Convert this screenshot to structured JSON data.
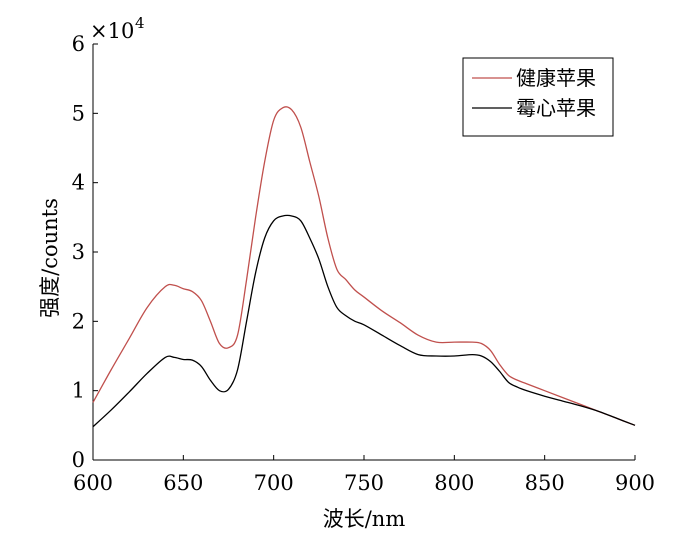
{
  "chart_data": {
    "type": "line",
    "xlabel": "波长/nm",
    "ylabel": "强度/counts",
    "exponent_label": "×10",
    "exponent_power": "4",
    "xlim": [
      600,
      900
    ],
    "ylim": [
      0,
      6
    ],
    "xticks": [
      "600",
      "650",
      "700",
      "750",
      "800",
      "850",
      "900"
    ],
    "yticks": [
      "0",
      "1",
      "2",
      "3",
      "4",
      "5",
      "6"
    ],
    "grid": false,
    "legend_position": "top-right",
    "series": [
      {
        "name": "健康苹果",
        "color": "#c0504d",
        "x": [
          600,
          610,
          620,
          630,
          640,
          645,
          650,
          655,
          660,
          665,
          670,
          675,
          680,
          685,
          690,
          695,
          700,
          705,
          710,
          715,
          720,
          725,
          730,
          735,
          740,
          745,
          750,
          760,
          770,
          780,
          790,
          800,
          810,
          815,
          820,
          825,
          830,
          835,
          840,
          850,
          860,
          870,
          880,
          890,
          900
        ],
        "y": [
          0.83,
          1.3,
          1.75,
          2.2,
          2.5,
          2.52,
          2.47,
          2.43,
          2.3,
          2.0,
          1.68,
          1.62,
          1.8,
          2.6,
          3.5,
          4.3,
          4.9,
          5.08,
          5.05,
          4.8,
          4.3,
          3.8,
          3.2,
          2.75,
          2.6,
          2.45,
          2.35,
          2.15,
          1.98,
          1.8,
          1.7,
          1.7,
          1.7,
          1.68,
          1.58,
          1.38,
          1.22,
          1.15,
          1.1,
          1.0,
          0.9,
          0.8,
          0.7,
          0.6,
          0.5
        ]
      },
      {
        "name": "霉心苹果",
        "color": "#000000",
        "x": [
          600,
          610,
          620,
          630,
          640,
          645,
          650,
          655,
          660,
          665,
          670,
          675,
          680,
          685,
          690,
          695,
          700,
          705,
          710,
          715,
          720,
          725,
          730,
          735,
          740,
          745,
          750,
          760,
          770,
          780,
          790,
          800,
          810,
          815,
          820,
          825,
          830,
          835,
          840,
          850,
          860,
          870,
          880,
          890,
          900
        ],
        "y": [
          0.48,
          0.72,
          0.98,
          1.25,
          1.48,
          1.48,
          1.45,
          1.44,
          1.35,
          1.15,
          1.0,
          1.02,
          1.3,
          2.0,
          2.7,
          3.2,
          3.45,
          3.52,
          3.52,
          3.45,
          3.2,
          2.9,
          2.5,
          2.2,
          2.08,
          2.0,
          1.95,
          1.8,
          1.65,
          1.52,
          1.5,
          1.5,
          1.52,
          1.5,
          1.42,
          1.28,
          1.12,
          1.05,
          1.0,
          0.92,
          0.85,
          0.78,
          0.7,
          0.6,
          0.5
        ]
      }
    ]
  }
}
